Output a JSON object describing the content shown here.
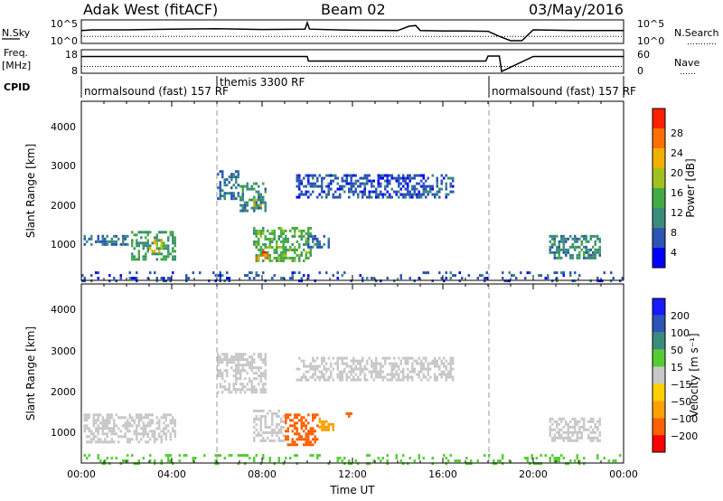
{
  "header": {
    "station": "Adak West (fitACF)",
    "beam": "Beam 02",
    "date": "03/May/2016"
  },
  "aux_panels": {
    "nsky": {
      "left_label": "N.Sky",
      "left_ticks": [
        "10^5",
        "10^0"
      ],
      "right_ticks": [
        "10^5",
        "10^0"
      ],
      "right_label": "N.Search",
      "right_legend": "……….."
    },
    "freq": {
      "left_label_1": "Freq.",
      "left_label_2": "[MHz]",
      "left_ticks": [
        "18",
        "8"
      ],
      "right_ticks": [
        "60",
        "0"
      ],
      "right_label": "Nave",
      "right_legend": "……"
    },
    "cpid": {
      "label": "CPID",
      "segments": [
        {
          "name": "normalsound (fast) 157 RF",
          "start_hour": 0
        },
        {
          "name": "themis 3300 RF",
          "start_hour": 6
        },
        {
          "name": "normalsound (fast) 157 RF",
          "start_hour": 18
        }
      ]
    }
  },
  "time_axis": {
    "label": "Time UT",
    "ticks": [
      "00:00",
      "04:00",
      "08:00",
      "12:00",
      "16:00",
      "20:00",
      "00:00"
    ]
  },
  "power_panel": {
    "ylabel": "Slant Range [km]",
    "yticks": [
      "1000",
      "2000",
      "3000",
      "4000"
    ],
    "colorbar_label": "Power [dB]",
    "colorbar_ticks": [
      "4",
      "8",
      "12",
      "16",
      "20",
      "24",
      "28"
    ],
    "colors": [
      "#0000ff",
      "#2c55b4",
      "#3a8c7a",
      "#44aa44",
      "#a0c020",
      "#f0b000",
      "#ff7000",
      "#ff2000"
    ]
  },
  "velocity_panel": {
    "ylabel": "Slant Range [km]",
    "yticks": [
      "1000",
      "2000",
      "3000",
      "4000"
    ],
    "colorbar_label": "Velocity [m s⁻¹]",
    "colorbar_ticks": [
      "200",
      "100",
      "50",
      "15",
      "−15",
      "−50",
      "−100",
      "−200"
    ],
    "colors": [
      "#1a1aff",
      "#2c55b4",
      "#3a8c7a",
      "#55cc33",
      "#c8c8c8",
      "#ffd000",
      "#ffa000",
      "#ff6000",
      "#ff0000"
    ]
  },
  "chart_data": [
    {
      "type": "line",
      "name": "N.Sky / N.Search",
      "x_unit": "hours UT",
      "xlim": [
        0,
        24
      ],
      "series": [
        {
          "name": "N.Sky",
          "x": [
            0,
            0.5,
            2,
            4,
            6,
            8,
            9.9,
            10,
            10.1,
            12,
            14,
            14.5,
            14.8,
            15,
            16,
            17,
            18,
            18.5,
            19,
            19.5,
            20,
            22,
            24
          ],
          "y_log10": [
            2.8,
            3.0,
            3.0,
            3.2,
            3.3,
            3.1,
            3.2,
            5,
            3.2,
            2.9,
            2.8,
            4.0,
            4.2,
            2.8,
            2.7,
            2.7,
            2.6,
            1.2,
            0.0,
            0.0,
            3.0,
            2.8,
            2.8
          ]
        },
        {
          "name": "N.Search",
          "x": [
            0,
            18,
            20,
            24
          ],
          "y_log10": [
            1.2,
            1.2,
            1.2,
            1.2
          ]
        }
      ]
    },
    {
      "type": "line",
      "name": "Freq / Nave",
      "x_unit": "hours UT",
      "xlim": [
        0,
        24
      ],
      "series": [
        {
          "name": "Freq",
          "x": [
            0,
            10,
            10.05,
            17.9,
            18,
            18.5,
            18.6,
            20,
            24
          ],
          "y_MHz": [
            15.5,
            15.5,
            13.2,
            13.2,
            15.7,
            15.7,
            8,
            15.5,
            15.5
          ]
        },
        {
          "name": "Nave",
          "x": [
            0,
            18,
            20,
            24
          ],
          "y": [
            15,
            15,
            15,
            15
          ]
        }
      ]
    },
    {
      "type": "heatmap",
      "name": "Power",
      "x_unit": "hours UT",
      "y_unit": "km",
      "xlim": [
        0,
        24
      ],
      "ylim": [
        180,
        4600
      ],
      "colorbar": {
        "unit": "dB",
        "range": [
          0,
          32
        ]
      },
      "patches": [
        {
          "x0": 0.1,
          "x1": 2.1,
          "y0": 1050,
          "y1": 1300,
          "value": 8
        },
        {
          "x0": 2.2,
          "x1": 4.2,
          "y0": 700,
          "y1": 1400,
          "value": 12
        },
        {
          "x0": 3.0,
          "x1": 3.6,
          "y0": 900,
          "y1": 1200,
          "value": 20
        },
        {
          "x0": 6.0,
          "x1": 7.0,
          "y0": 2200,
          "y1": 2900,
          "value": 8
        },
        {
          "x0": 7.0,
          "x1": 8.2,
          "y0": 1900,
          "y1": 2600,
          "value": 10
        },
        {
          "x0": 7.6,
          "x1": 8.0,
          "y0": 2000,
          "y1": 2200,
          "value": 20
        },
        {
          "x0": 7.6,
          "x1": 10.2,
          "y0": 650,
          "y1": 1500,
          "value": 14
        },
        {
          "x0": 7.7,
          "x1": 8.3,
          "y0": 700,
          "y1": 900,
          "value": 26
        },
        {
          "x0": 10.0,
          "x1": 11.0,
          "y0": 1000,
          "y1": 1300,
          "value": 8
        },
        {
          "x0": 9.5,
          "x1": 16.5,
          "y0": 2200,
          "y1": 2800,
          "value": 6
        },
        {
          "x0": 20.7,
          "x1": 23.0,
          "y0": 750,
          "y1": 1300,
          "value": 10
        },
        {
          "x0": 0.0,
          "x1": 24.0,
          "y0": 180,
          "y1": 400,
          "value": 6
        }
      ]
    },
    {
      "type": "heatmap",
      "name": "Velocity",
      "x_unit": "hours UT",
      "y_unit": "km",
      "xlim": [
        0,
        24
      ],
      "ylim": [
        180,
        4600
      ],
      "colorbar": {
        "unit": "m s⁻¹",
        "range": [
          -250,
          250
        ]
      },
      "patches": [
        {
          "x0": 0.1,
          "x1": 4.2,
          "y0": 700,
          "y1": 1400,
          "value": 0
        },
        {
          "x0": 6.0,
          "x1": 8.2,
          "y0": 1900,
          "y1": 2900,
          "value": 0
        },
        {
          "x0": 7.6,
          "x1": 9.0,
          "y0": 700,
          "y1": 1500,
          "value": 0
        },
        {
          "x0": 9.0,
          "x1": 10.5,
          "y0": 650,
          "y1": 1400,
          "value": -110
        },
        {
          "x0": 10.5,
          "x1": 11.2,
          "y0": 1000,
          "y1": 1300,
          "value": -60
        },
        {
          "x0": 11.7,
          "x1": 12.0,
          "y0": 1300,
          "y1": 1500,
          "value": -90
        },
        {
          "x0": 9.5,
          "x1": 16.5,
          "y0": 2200,
          "y1": 2800,
          "value": 0
        },
        {
          "x0": 20.7,
          "x1": 23.0,
          "y0": 750,
          "y1": 1300,
          "value": 0
        },
        {
          "x0": 0.0,
          "x1": 24.0,
          "y0": 180,
          "y1": 400,
          "value": 20
        }
      ]
    }
  ]
}
